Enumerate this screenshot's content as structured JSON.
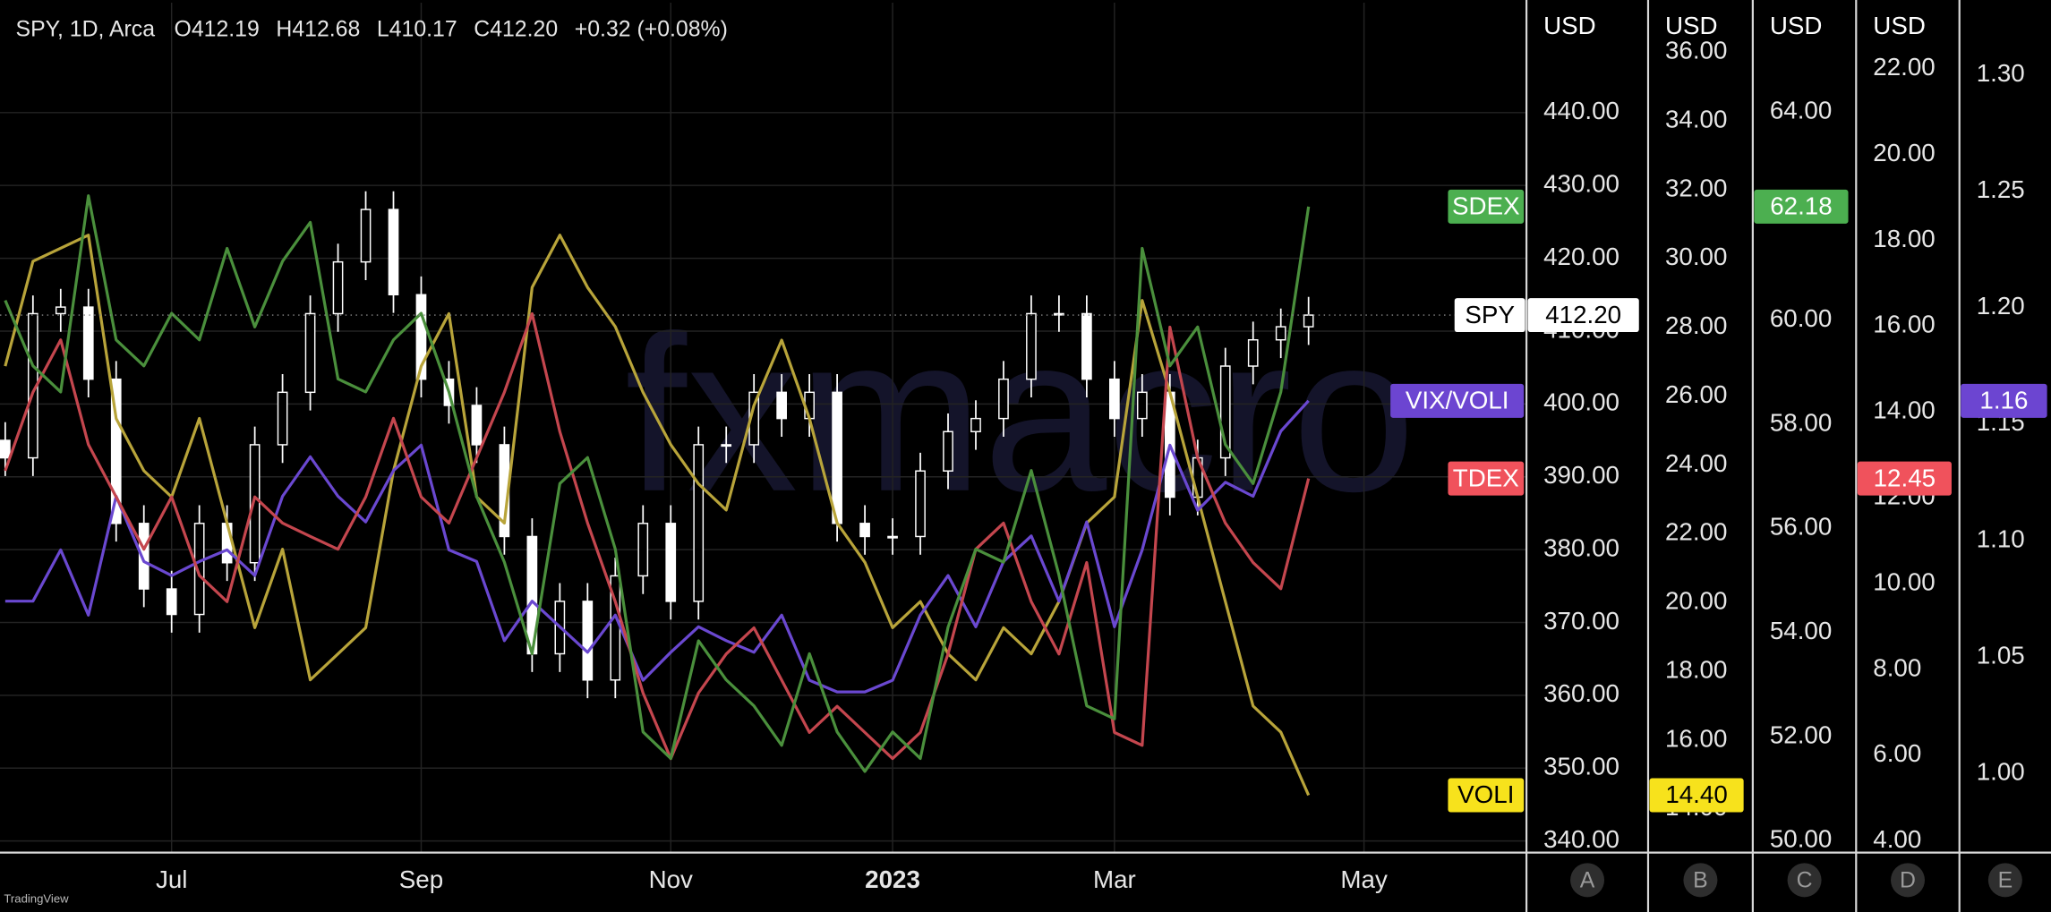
{
  "chart_data": {
    "type": "candlestick",
    "title": "SPY, 1D, Arca",
    "ohlc_header": [
      {
        "label": "O",
        "value": "412.19"
      },
      {
        "label": "H",
        "value": "412.68"
      },
      {
        "label": "L",
        "value": "410.17"
      },
      {
        "label": "C",
        "value": "412.20"
      }
    ],
    "change": "+0.32 (+0.08%)",
    "watermark": "fxmacro",
    "branding": "TradingView",
    "symbol": "SPY",
    "color": "#ffffff",
    "tag_color": "#ffffff",
    "close_label": "412.20",
    "grid": true,
    "categories": [
      null,
      null,
      null,
      null,
      null,
      null,
      "Jul",
      null,
      null,
      null,
      null,
      null,
      null,
      null,
      null,
      "Sep",
      null,
      null,
      null,
      null,
      null,
      null,
      null,
      null,
      "Nov",
      null,
      null,
      null,
      null,
      null,
      null,
      null,
      "2023",
      null,
      null,
      null,
      null,
      null,
      null,
      null,
      "Mar",
      null,
      null,
      null,
      null,
      null,
      null,
      null,
      null,
      "May"
    ],
    "open": [
      395.0,
      392.6,
      412.4,
      413.3,
      403.4,
      383.6,
      374.6,
      371.1,
      383.6,
      378.2,
      394.4,
      401.6,
      412.4,
      419.5,
      426.7,
      415.0,
      403.4,
      399.8,
      394.4,
      381.8,
      365.7,
      372.9,
      362.1,
      376.4,
      383.6,
      372.9,
      394.4,
      394.4,
      401.6,
      398.0,
      401.6,
      383.6,
      381.8,
      381.8,
      390.8,
      396.2,
      398.0,
      403.4,
      412.4,
      412.4,
      403.4,
      398.0,
      401.6,
      387.2,
      392.6,
      405.2,
      408.8,
      410.6,
      null,
      null
    ],
    "high": [
      397.5,
      414.9,
      415.8,
      415.8,
      405.9,
      386.1,
      377.1,
      386.1,
      386.1,
      396.9,
      404.1,
      414.9,
      422.0,
      429.2,
      429.2,
      417.5,
      405.9,
      402.3,
      396.9,
      384.3,
      375.4,
      375.4,
      378.9,
      386.1,
      386.1,
      396.9,
      396.9,
      404.1,
      404.1,
      404.1,
      404.1,
      386.1,
      384.3,
      393.3,
      398.7,
      400.5,
      405.9,
      414.9,
      414.9,
      414.9,
      405.9,
      404.1,
      404.1,
      395.1,
      407.7,
      411.3,
      413.1,
      414.7,
      null,
      null
    ],
    "low": [
      390.1,
      390.1,
      409.9,
      400.9,
      381.1,
      372.1,
      368.6,
      368.6,
      375.7,
      375.7,
      391.9,
      399.1,
      409.9,
      417.0,
      412.5,
      400.9,
      397.3,
      391.9,
      379.3,
      363.2,
      363.2,
      359.6,
      359.6,
      373.9,
      370.4,
      370.4,
      391.9,
      391.9,
      395.5,
      395.5,
      381.1,
      379.3,
      379.3,
      379.3,
      388.3,
      393.7,
      395.5,
      400.9,
      409.9,
      400.9,
      395.5,
      395.5,
      384.7,
      384.7,
      390.1,
      402.7,
      406.3,
      408.1,
      null,
      null
    ],
    "close": [
      392.6,
      412.4,
      413.3,
      403.4,
      383.6,
      374.6,
      371.1,
      383.6,
      378.2,
      394.4,
      401.6,
      412.4,
      419.5,
      426.7,
      415.0,
      403.4,
      399.8,
      394.4,
      381.8,
      365.7,
      372.9,
      362.1,
      376.4,
      383.6,
      372.9,
      394.4,
      394.4,
      401.6,
      398.0,
      401.6,
      383.6,
      381.8,
      381.8,
      390.8,
      396.2,
      398.0,
      403.4,
      412.4,
      412.4,
      403.4,
      398.0,
      401.6,
      387.2,
      392.6,
      405.2,
      408.8,
      410.6,
      412.2,
      null,
      null
    ],
    "axes": [
      {
        "letter": "A",
        "unit": "USD",
        "ylim": [
          338.4,
          455.1
        ],
        "yticks": [
          {
            "value": 340,
            "label": "340.00"
          },
          {
            "value": 350,
            "label": "350.00"
          },
          {
            "value": 360,
            "label": "360.00"
          },
          {
            "value": 370,
            "label": "370.00"
          },
          {
            "value": 380,
            "label": "380.00"
          },
          {
            "value": 390,
            "label": "390.00"
          },
          {
            "value": 400,
            "label": "400.00"
          },
          {
            "value": 410,
            "label": "410.00"
          },
          {
            "value": 420,
            "label": "420.00"
          },
          {
            "value": 430,
            "label": "430.00"
          },
          {
            "value": 440,
            "label": "440.00"
          }
        ]
      },
      {
        "letter": "B",
        "unit": "USD",
        "ylim": [
          12.73,
          37.44
        ],
        "yticks": [
          {
            "value": 14,
            "label": "14.00"
          },
          {
            "value": 16,
            "label": "16.00"
          },
          {
            "value": 18,
            "label": "18.00"
          },
          {
            "value": 20,
            "label": "20.00"
          },
          {
            "value": 22,
            "label": "22.00"
          },
          {
            "value": 24,
            "label": "24.00"
          },
          {
            "value": 26,
            "label": "26.00"
          },
          {
            "value": 28,
            "label": "28.00"
          },
          {
            "value": 30,
            "label": "30.00"
          },
          {
            "value": 32,
            "label": "32.00"
          },
          {
            "value": 34,
            "label": "34.00"
          },
          {
            "value": 36,
            "label": "36.00"
          }
        ]
      },
      {
        "letter": "C",
        "unit": "USD",
        "ylim": [
          49.77,
          66.1
        ],
        "yticks": [
          {
            "value": 50,
            "label": "50.00"
          },
          {
            "value": 52,
            "label": "52.00"
          },
          {
            "value": 54,
            "label": "54.00"
          },
          {
            "value": 56,
            "label": "56.00"
          },
          {
            "value": 58,
            "label": "58.00"
          },
          {
            "value": 60,
            "label": "60.00"
          },
          {
            "value": 62,
            "label": "62.00"
          },
          {
            "value": 64,
            "label": "64.00"
          }
        ]
      },
      {
        "letter": "D",
        "unit": "USD",
        "ylim": [
          3.73,
          23.54
        ],
        "yticks": [
          {
            "value": 4,
            "label": "4.00"
          },
          {
            "value": 6,
            "label": "6.00"
          },
          {
            "value": 8,
            "label": "8.00"
          },
          {
            "value": 10,
            "label": "10.00"
          },
          {
            "value": 12,
            "label": "12.00"
          },
          {
            "value": 14,
            "label": "14.00"
          },
          {
            "value": 16,
            "label": "16.00"
          },
          {
            "value": 18,
            "label": "18.00"
          },
          {
            "value": 20,
            "label": "20.00"
          },
          {
            "value": 22,
            "label": "22.00"
          }
        ]
      },
      {
        "letter": "E",
        "ylim": [
          0.966,
          1.331
        ],
        "yticks": [
          {
            "value": 1.0,
            "label": "1.00"
          },
          {
            "value": 1.05,
            "label": "1.05"
          },
          {
            "value": 1.1,
            "label": "1.10"
          },
          {
            "value": 1.15,
            "label": "1.15"
          },
          {
            "value": 1.2,
            "label": "1.20"
          },
          {
            "value": 1.25,
            "label": "1.25"
          },
          {
            "value": 1.3,
            "label": "1.30"
          }
        ]
      }
    ],
    "series": [
      {
        "type": "line",
        "name": "VOLI",
        "axis": "B",
        "color": "#b8a43a",
        "tag_color": "#f7e21c",
        "tag_text_color": "#000000",
        "last_label": "14.40",
        "values": [
          26.87,
          29.92,
          30.3,
          30.68,
          25.35,
          23.83,
          23.07,
          25.35,
          22.31,
          19.27,
          21.55,
          17.75,
          18.51,
          19.27,
          23.83,
          26.87,
          28.4,
          23.07,
          22.31,
          29.16,
          30.68,
          29.16,
          28.02,
          26.11,
          24.59,
          23.45,
          22.69,
          25.73,
          27.63,
          25.35,
          22.31,
          21.17,
          19.27,
          20.03,
          18.51,
          17.75,
          19.27,
          18.51,
          20.03,
          22.31,
          23.07,
          28.78,
          26.11,
          23.07,
          20.03,
          16.99,
          16.23,
          14.4,
          null,
          null
        ]
      },
      {
        "type": "line",
        "name": "VIX/VOLI",
        "axis": "E",
        "color": "#6a48d0",
        "tag_color": "#6c45d1",
        "tag_text_color": "#ffffff",
        "last_label": "1.16",
        "values": [
          1.074,
          1.074,
          1.096,
          1.068,
          1.119,
          1.091,
          1.085,
          1.091,
          1.096,
          1.085,
          1.119,
          1.136,
          1.119,
          1.108,
          1.13,
          1.141,
          1.096,
          1.091,
          1.057,
          1.074,
          1.063,
          1.052,
          1.068,
          1.04,
          1.052,
          1.063,
          1.057,
          1.052,
          1.068,
          1.04,
          1.035,
          1.035,
          1.04,
          1.068,
          1.085,
          1.063,
          1.091,
          1.102,
          1.074,
          1.108,
          1.063,
          1.096,
          1.141,
          1.113,
          1.125,
          1.119,
          1.147,
          1.16,
          null,
          null
        ]
      },
      {
        "type": "line",
        "name": "TDEX",
        "axis": "D",
        "color": "#c4464e",
        "tag_color": "#f0525c",
        "tag_text_color": "#ffffff",
        "last_label": "12.45",
        "values": [
          12.63,
          14.46,
          15.68,
          13.24,
          12.02,
          10.8,
          12.02,
          10.19,
          9.58,
          12.02,
          11.41,
          11.1,
          10.8,
          12.02,
          13.85,
          12.02,
          11.41,
          12.93,
          14.46,
          16.29,
          13.54,
          11.41,
          9.58,
          7.45,
          5.92,
          7.45,
          8.36,
          8.97,
          7.75,
          6.53,
          7.14,
          6.53,
          5.92,
          6.53,
          8.36,
          10.8,
          11.41,
          9.58,
          8.36,
          10.49,
          6.53,
          6.23,
          15.98,
          12.93,
          11.41,
          10.49,
          9.88,
          12.45,
          null,
          null
        ]
      },
      {
        "type": "line",
        "name": "SDEX",
        "axis": "C",
        "color": "#4a8f3c",
        "tag_color": "#4caf50",
        "tag_text_color": "#ffffff",
        "last_label": "62.18",
        "values": [
          60.38,
          59.12,
          58.62,
          62.39,
          59.62,
          59.12,
          60.13,
          59.62,
          61.38,
          59.87,
          61.13,
          61.88,
          58.87,
          58.62,
          59.62,
          60.13,
          58.62,
          56.61,
          55.35,
          53.59,
          56.86,
          57.36,
          55.6,
          52.09,
          51.58,
          53.84,
          53.09,
          52.59,
          51.83,
          53.59,
          52.09,
          51.33,
          52.09,
          51.58,
          54.1,
          55.6,
          55.35,
          57.11,
          55.1,
          52.59,
          52.34,
          61.38,
          59.12,
          59.87,
          57.61,
          56.86,
          58.62,
          62.18,
          null,
          null
        ]
      }
    ]
  }
}
